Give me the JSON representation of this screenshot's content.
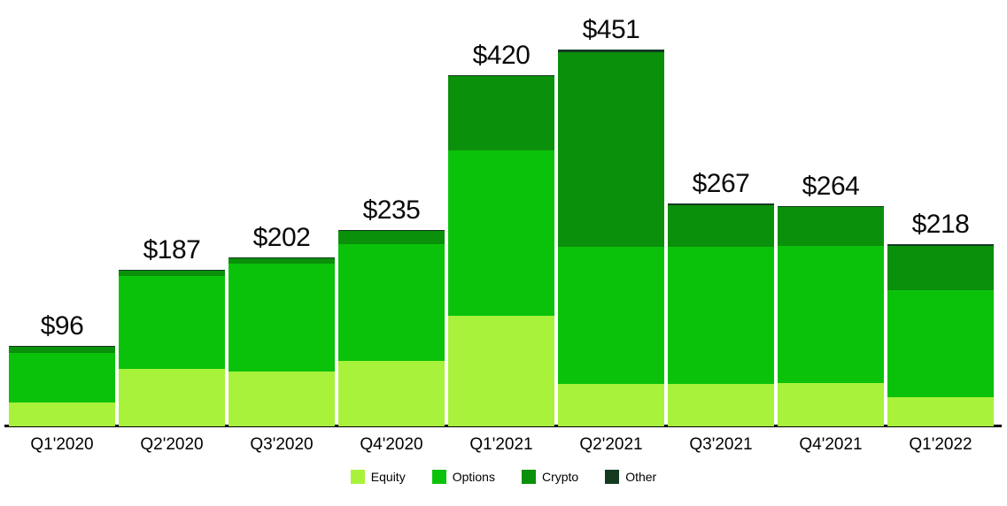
{
  "chart_data": {
    "type": "bar",
    "stacked": true,
    "categories": [
      "Q1'2020",
      "Q2'2020",
      "Q3'2020",
      "Q4'2020",
      "Q1'2021",
      "Q2'2021",
      "Q3'2021",
      "Q4'2021",
      "Q1'2022"
    ],
    "series": [
      {
        "name": "Equity",
        "color": "#a8f23c",
        "values": [
          29,
          69,
          66,
          78,
          132,
          51,
          51,
          52,
          35
        ]
      },
      {
        "name": "Options",
        "color": "#0bc20b",
        "values": [
          59,
          111,
          129,
          140,
          198,
          164,
          164,
          164,
          128
        ]
      },
      {
        "name": "Crypto",
        "color": "#0a900a",
        "values": [
          7,
          6,
          6,
          16,
          89,
          233,
          50,
          46,
          53
        ]
      },
      {
        "name": "Other",
        "color": "#143a22",
        "values": [
          1,
          1,
          1,
          1,
          1,
          3,
          2,
          2,
          2
        ]
      }
    ],
    "totals": [
      96,
      187,
      202,
      235,
      420,
      451,
      267,
      264,
      218
    ],
    "total_labels": [
      "$96",
      "$187",
      "$202",
      "$235",
      "$420",
      "$451",
      "$267",
      "$264",
      "$218"
    ],
    "legend": [
      "Equity",
      "Options",
      "Crypto",
      "Other"
    ],
    "legend_position": "bottom",
    "grid": false,
    "value_axis_shown": false,
    "approx_value_range": [
      0,
      451
    ],
    "axis_line_color": "#000000",
    "background_color": "#ffffff",
    "label_text_color": "#0a0a0a"
  }
}
